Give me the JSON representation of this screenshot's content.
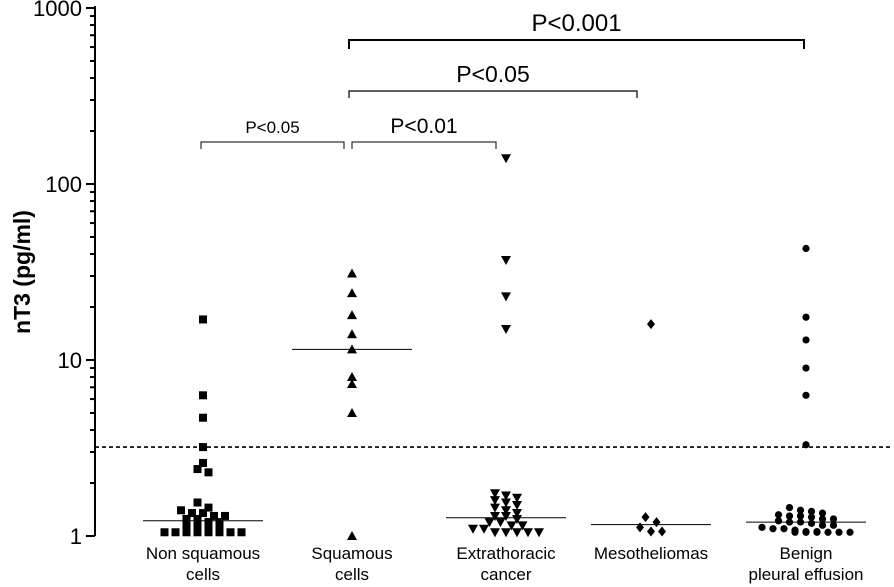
{
  "chart_data": {
    "type": "scatter",
    "ylabel": "nT3 (pg/ml)",
    "yscale": "log",
    "ylim": [
      1,
      1000
    ],
    "yticks": [
      1,
      10,
      100,
      1000
    ],
    "ytick_labels": [
      "1",
      "10",
      "100",
      "1000"
    ],
    "threshold": 3.2,
    "groups": [
      {
        "label_lines": [
          "Non squamous",
          "cells"
        ],
        "marker": "square",
        "median": 1.22,
        "values": [
          17,
          6.3,
          4.7,
          3.2,
          2.6,
          2.4,
          2.3,
          1.55,
          1.45,
          1.4,
          1.35,
          1.35,
          1.3,
          1.3,
          1.25,
          1.25,
          1.2,
          1.2,
          1.15,
          1.15,
          1.1,
          1.1,
          1.05,
          1.05,
          1.05,
          1.05,
          1.05,
          1.05,
          1.05,
          1.05
        ]
      },
      {
        "label_lines": [
          "Squamous",
          "cells"
        ],
        "marker": "triangle-up",
        "median": 11.5,
        "values": [
          31,
          24,
          18,
          14,
          11.5,
          8,
          7.3,
          5,
          1
        ]
      },
      {
        "label_lines": [
          "Extrathoracic",
          "cancer"
        ],
        "marker": "triangle-down",
        "median": 1.27,
        "values": [
          140,
          37,
          23,
          15,
          1.75,
          1.7,
          1.65,
          1.6,
          1.55,
          1.5,
          1.45,
          1.4,
          1.35,
          1.3,
          1.3,
          1.25,
          1.2,
          1.2,
          1.15,
          1.15,
          1.1,
          1.1,
          1.05,
          1.05,
          1.05,
          1.05,
          1.05
        ]
      },
      {
        "label_lines": [
          "Mesotheliomas",
          ""
        ],
        "marker": "diamond",
        "median": 1.16,
        "values": [
          16,
          1.28,
          1.2,
          1.12,
          1.06,
          1.06
        ]
      },
      {
        "label_lines": [
          "Benign",
          "pleural effusion"
        ],
        "marker": "circle",
        "median": 1.2,
        "values": [
          43,
          17.5,
          13,
          9,
          6.3,
          3.3,
          1.45,
          1.4,
          1.38,
          1.35,
          1.32,
          1.3,
          1.3,
          1.28,
          1.25,
          1.25,
          1.22,
          1.2,
          1.2,
          1.18,
          1.15,
          1.15,
          1.12,
          1.1,
          1.1,
          1.08,
          1.06,
          1.06,
          1.05,
          1.05,
          1.05,
          1.05,
          1.05,
          1.05
        ]
      }
    ],
    "comparisons": [
      {
        "from": 0,
        "to": 1,
        "label": "P<0.05"
      },
      {
        "from": 1,
        "to": 2,
        "label": "P<0.01"
      },
      {
        "from": 1,
        "to": 3,
        "label": "P<0.05"
      },
      {
        "from": 1,
        "to": 4,
        "label": "P<0.001"
      }
    ]
  }
}
